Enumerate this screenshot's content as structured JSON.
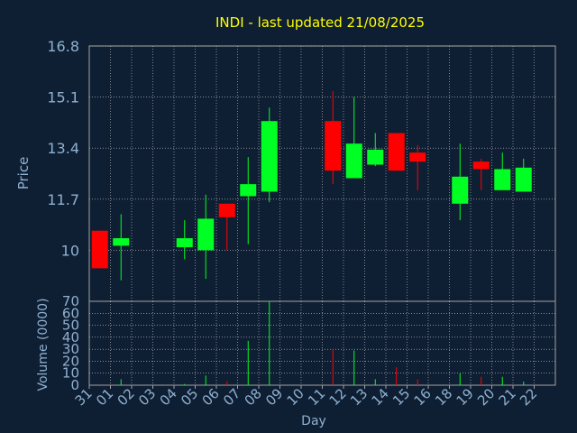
{
  "title": "INDI - last updated 21/08/2025",
  "colors": {
    "background": "#0f1f33",
    "plot_area": "#0f1f33",
    "title": "#ffff00",
    "text": "#8fb0d0",
    "grid": "#c8c8c8",
    "border": "#a0a0a0",
    "up": "#00ff22",
    "down": "#ff0000"
  },
  "chart_data": [
    {
      "type": "candlestick",
      "ylabel": "Price",
      "ylim": [
        8.3,
        16.8
      ],
      "yticks": [
        10,
        11.7,
        13.4,
        15.1,
        16.8
      ],
      "ytick_labels": [
        "10",
        "11.7",
        "13.4",
        "15.1",
        "16.8"
      ],
      "grid": true,
      "x": [
        "31",
        "01",
        "02",
        "03",
        "04",
        "05",
        "06",
        "07",
        "08",
        "09",
        "10",
        "11",
        "12",
        "13",
        "14",
        "15",
        "16",
        "18",
        "19",
        "20",
        "21",
        "22"
      ],
      "candles": [
        {
          "x": "31",
          "open": 10.65,
          "high": 10.65,
          "low": 9.4,
          "close": 9.4
        },
        {
          "x": "01",
          "open": 10.15,
          "high": 11.2,
          "low": 9.0,
          "close": 10.4
        },
        {
          "x": "04",
          "open": 10.1,
          "high": 11.0,
          "low": 9.7,
          "close": 10.4
        },
        {
          "x": "05",
          "open": 10.0,
          "high": 11.85,
          "low": 9.05,
          "close": 11.05
        },
        {
          "x": "06",
          "open": 11.55,
          "high": 11.55,
          "low": 10.0,
          "close": 11.1
        },
        {
          "x": "07",
          "open": 11.8,
          "high": 13.1,
          "low": 10.2,
          "close": 12.2
        },
        {
          "x": "08",
          "open": 11.95,
          "high": 14.75,
          "low": 11.6,
          "close": 14.3
        },
        {
          "x": "11",
          "open": 14.3,
          "high": 15.3,
          "low": 12.2,
          "close": 12.65
        },
        {
          "x": "12",
          "open": 12.4,
          "high": 15.1,
          "low": 12.4,
          "close": 13.55
        },
        {
          "x": "13",
          "open": 12.85,
          "high": 13.9,
          "low": 12.8,
          "close": 13.35
        },
        {
          "x": "14",
          "open": 13.9,
          "high": 13.9,
          "low": 12.65,
          "close": 12.65
        },
        {
          "x": "15",
          "open": 13.25,
          "high": 13.5,
          "low": 12.0,
          "close": 12.95
        },
        {
          "x": "18",
          "open": 11.55,
          "high": 13.55,
          "low": 11.0,
          "close": 12.45
        },
        {
          "x": "19",
          "open": 12.95,
          "high": 13.05,
          "low": 12.0,
          "close": 12.7
        },
        {
          "x": "20",
          "open": 12.0,
          "high": 13.25,
          "low": 12.0,
          "close": 12.7
        },
        {
          "x": "21",
          "open": 11.95,
          "high": 13.05,
          "low": 11.95,
          "close": 12.75
        }
      ]
    },
    {
      "type": "bar",
      "ylabel": "Volume (0000)",
      "xlabel": "Day",
      "ylim": [
        0,
        70
      ],
      "yticks": [
        0,
        10,
        20,
        30,
        40,
        50,
        60,
        70
      ],
      "ytick_labels": [
        "0",
        "10",
        "20",
        "30",
        "40",
        "50",
        "60",
        "70"
      ],
      "grid": true,
      "categories": [
        "31",
        "01",
        "02",
        "03",
        "04",
        "05",
        "06",
        "07",
        "08",
        "09",
        "10",
        "11",
        "12",
        "13",
        "14",
        "15",
        "16",
        "18",
        "19",
        "20",
        "21",
        "22"
      ],
      "bars": [
        {
          "x": "31",
          "value": 0,
          "direction": "down"
        },
        {
          "x": "01",
          "value": 5,
          "direction": "up"
        },
        {
          "x": "04",
          "value": 1,
          "direction": "up"
        },
        {
          "x": "05",
          "value": 8,
          "direction": "up"
        },
        {
          "x": "06",
          "value": 3,
          "direction": "down"
        },
        {
          "x": "07",
          "value": 37,
          "direction": "up"
        },
        {
          "x": "08",
          "value": 70,
          "direction": "up"
        },
        {
          "x": "11",
          "value": 30,
          "direction": "down"
        },
        {
          "x": "12",
          "value": 29,
          "direction": "up"
        },
        {
          "x": "13",
          "value": 5,
          "direction": "up"
        },
        {
          "x": "14",
          "value": 15,
          "direction": "down"
        },
        {
          "x": "15",
          "value": 5,
          "direction": "down"
        },
        {
          "x": "18",
          "value": 10,
          "direction": "up"
        },
        {
          "x": "19",
          "value": 7,
          "direction": "down"
        },
        {
          "x": "20",
          "value": 7,
          "direction": "up"
        },
        {
          "x": "21",
          "value": 3,
          "direction": "up"
        }
      ]
    }
  ]
}
